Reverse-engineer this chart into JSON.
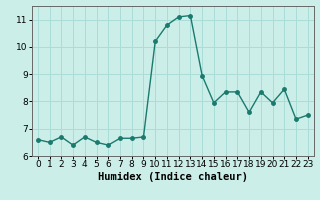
{
  "x": [
    0,
    1,
    2,
    3,
    4,
    5,
    6,
    7,
    8,
    9,
    10,
    11,
    12,
    13,
    14,
    15,
    16,
    17,
    18,
    19,
    20,
    21,
    22,
    23
  ],
  "y": [
    6.6,
    6.5,
    6.7,
    6.4,
    6.7,
    6.5,
    6.4,
    6.65,
    6.65,
    6.7,
    10.2,
    10.8,
    11.1,
    11.15,
    8.95,
    7.95,
    8.35,
    8.35,
    7.6,
    8.35,
    7.95,
    8.45,
    7.35,
    7.5
  ],
  "line_color": "#1a7a6e",
  "marker": "o",
  "marker_size": 2.5,
  "linewidth": 1.0,
  "xlabel": "Humidex (Indice chaleur)",
  "ylim": [
    6,
    11.5
  ],
  "xlim": [
    -0.5,
    23.5
  ],
  "yticks": [
    6,
    7,
    8,
    9,
    10,
    11
  ],
  "xticks": [
    0,
    1,
    2,
    3,
    4,
    5,
    6,
    7,
    8,
    9,
    10,
    11,
    12,
    13,
    14,
    15,
    16,
    17,
    18,
    19,
    20,
    21,
    22,
    23
  ],
  "background_color": "#cceee8",
  "grid_color": "#aaddd8",
  "tick_fontsize": 6.5,
  "xlabel_fontsize": 7.5,
  "spine_color": "#666666"
}
